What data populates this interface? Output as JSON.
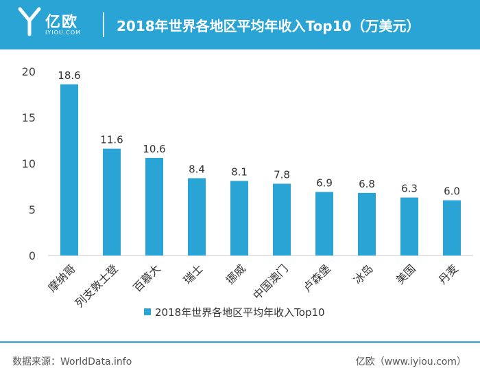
{
  "header": {
    "logo_text": "亿欧",
    "logo_sub": "IYIOU.COM",
    "title": "2018年世界各地区平均年收入Top10（万美元）"
  },
  "colors": {
    "header_bg": "#2aa3d5",
    "bar": "#2aa3d5",
    "axis": "#c8c8c8"
  },
  "chart_data": {
    "type": "bar",
    "title": "2018年世界各地区平均年收入Top10（万美元）",
    "categories": [
      "摩纳哥",
      "列支敦士登",
      "百慕大",
      "瑞士",
      "挪威",
      "中国澳门",
      "卢森堡",
      "冰岛",
      "美国",
      "丹麦"
    ],
    "series": [
      {
        "name": "2018年世界各地区平均年收入Top10",
        "values": [
          18.6,
          11.6,
          10.6,
          8.4,
          8.1,
          7.8,
          6.9,
          6.8,
          6.3,
          6.0
        ]
      }
    ],
    "value_labels": [
      "18.6",
      "11.6",
      "10.6",
      "8.4",
      "8.1",
      "7.8",
      "6.9",
      "6.8",
      "6.3",
      "6.0"
    ],
    "ylim": [
      0,
      20
    ],
    "yticks": [
      0,
      5,
      10,
      15,
      20
    ],
    "xlabel": "",
    "ylabel": "",
    "grid": false,
    "legend_position": "bottom-center"
  },
  "footer": {
    "source": "数据来源：WorldData.info",
    "credit": "亿欧（www.iyiou.com）"
  }
}
